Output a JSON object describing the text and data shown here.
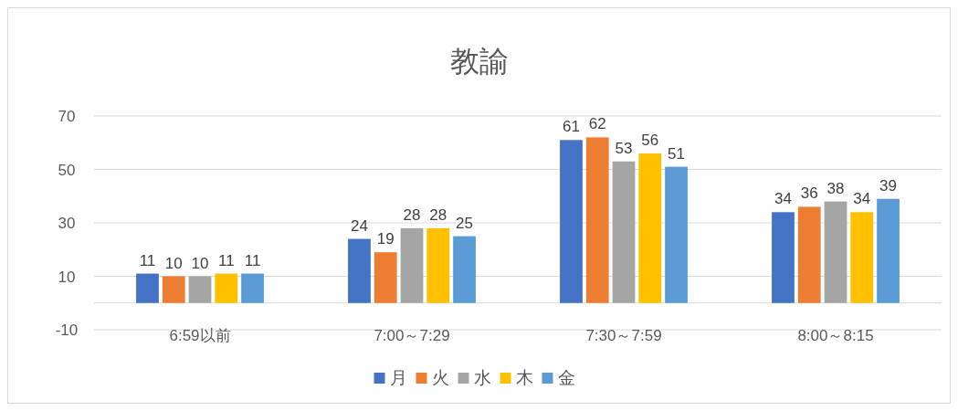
{
  "chart_data": {
    "type": "bar",
    "title": "教諭",
    "categories": [
      "6:59以前",
      "7:00～7:29",
      "7:30～7:59",
      "8:00～8:15"
    ],
    "series": [
      {
        "name": "月",
        "color": "#4472c4",
        "values": [
          11,
          24,
          61,
          34
        ]
      },
      {
        "name": "火",
        "color": "#ed7d31",
        "values": [
          10,
          19,
          62,
          36
        ]
      },
      {
        "name": "水",
        "color": "#a5a5a5",
        "values": [
          10,
          28,
          53,
          38
        ]
      },
      {
        "name": "木",
        "color": "#ffc000",
        "values": [
          11,
          28,
          56,
          34
        ]
      },
      {
        "name": "金",
        "color": "#5b9bd5",
        "values": [
          11,
          25,
          51,
          39
        ]
      }
    ],
    "ylim": [
      -10,
      70
    ],
    "yticks": [
      -10,
      10,
      30,
      50,
      70
    ],
    "grid": "y",
    "legend": "bottom",
    "data_labels": true
  }
}
